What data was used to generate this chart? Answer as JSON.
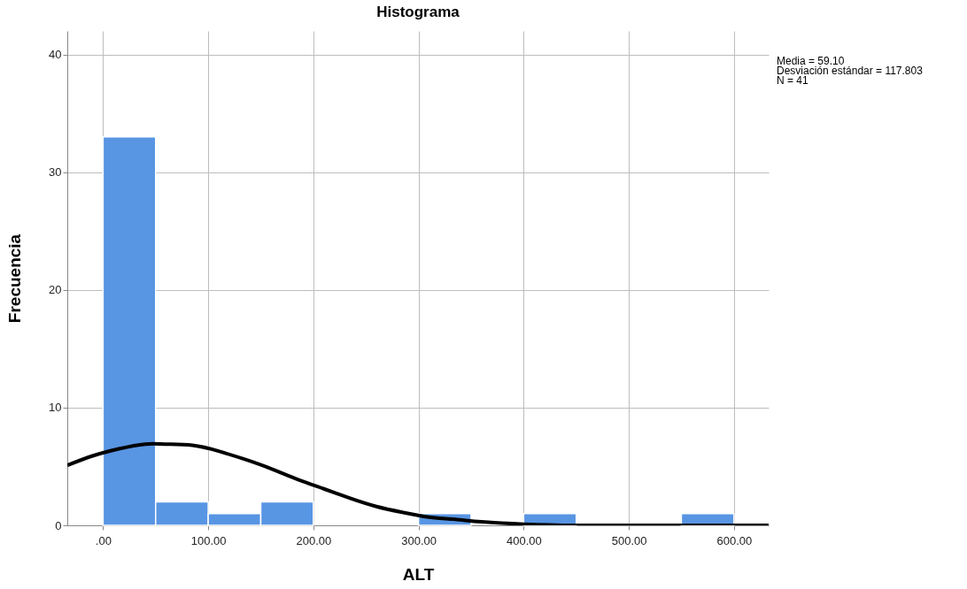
{
  "chart_data": {
    "type": "histogram",
    "title": "Histograma",
    "xlabel": "ALT",
    "ylabel": "Frecuencia",
    "annotations": [
      "Media = 59.10",
      "Desviación estándar = 117.803",
      "N = 41"
    ],
    "bins": [
      0,
      50,
      100,
      150,
      200,
      250,
      300,
      350,
      400,
      450,
      500,
      550,
      600
    ],
    "values": [
      33,
      2,
      1,
      2,
      0,
      0,
      1,
      0,
      1,
      0,
      0,
      1
    ],
    "color": "#5895e3",
    "series": [
      {
        "type": "line",
        "color": "#000000",
        "x": [
          -34,
          -10,
          15,
          40,
          59.1,
          85,
          110,
          135,
          160,
          185,
          210,
          235,
          260,
          285,
          310,
          335,
          360,
          400,
          450,
          500,
          550,
          633
        ],
        "values": [
          5.1,
          5.9,
          6.5,
          6.9,
          6.9,
          6.8,
          6.3,
          5.6,
          4.8,
          3.9,
          3.1,
          2.3,
          1.6,
          1.1,
          0.7,
          0.5,
          0.3,
          0.1,
          0.0,
          0.0,
          0.0,
          0.0
        ]
      }
    ],
    "xlim": [
      -34,
      633
    ],
    "ylim": [
      0,
      42
    ],
    "xticks": [
      {
        "value": 0,
        "label": ".00"
      },
      {
        "value": 100,
        "label": "100.00"
      },
      {
        "value": 200,
        "label": "200.00"
      },
      {
        "value": 300,
        "label": "300.00"
      },
      {
        "value": 400,
        "label": "400.00"
      },
      {
        "value": 500,
        "label": "500.00"
      },
      {
        "value": 600,
        "label": "600.00"
      }
    ],
    "yticks": [
      0,
      10,
      20,
      30,
      40
    ],
    "grid": true
  }
}
